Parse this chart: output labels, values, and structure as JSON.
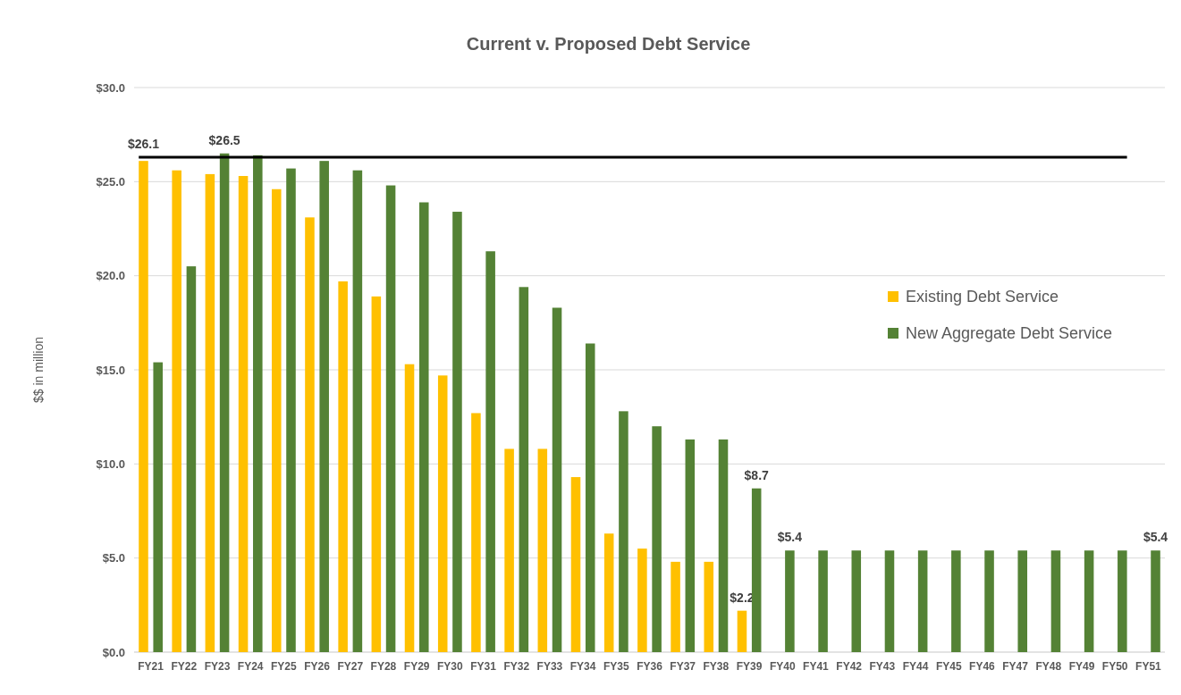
{
  "chart_data": {
    "type": "bar",
    "title": "Current v. Proposed Debt Service",
    "ylabel": "$$ in million",
    "categories": [
      "FY21",
      "FY22",
      "FY23",
      "FY24",
      "FY25",
      "FY26",
      "FY27",
      "FY28",
      "FY29",
      "FY30",
      "FY31",
      "FY32",
      "FY33",
      "FY34",
      "FY35",
      "FY36",
      "FY37",
      "FY38",
      "FY39",
      "FY40",
      "FY41",
      "FY42",
      "FY43",
      "FY44",
      "FY45",
      "FY46",
      "FY47",
      "FY48",
      "FY49",
      "FY50",
      "FY51"
    ],
    "series": [
      {
        "name": "Existing Debt Service",
        "color": "#ffc000",
        "values": [
          26.1,
          25.6,
          25.4,
          25.3,
          24.6,
          23.1,
          19.7,
          18.9,
          15.3,
          14.7,
          12.7,
          10.8,
          10.8,
          9.3,
          6.3,
          5.5,
          4.8,
          4.8,
          2.2,
          null,
          null,
          null,
          null,
          null,
          null,
          null,
          null,
          null,
          null,
          null,
          null
        ],
        "value_labels": [
          "$26.1",
          null,
          null,
          null,
          null,
          null,
          null,
          null,
          null,
          null,
          null,
          null,
          null,
          null,
          null,
          null,
          null,
          null,
          "$2.2",
          null,
          null,
          null,
          null,
          null,
          null,
          null,
          null,
          null,
          null,
          null,
          null
        ]
      },
      {
        "name": "New Aggregate Debt Service",
        "color": "#548235",
        "values": [
          15.4,
          20.5,
          26.5,
          26.4,
          25.7,
          26.1,
          25.6,
          24.8,
          23.9,
          23.4,
          21.3,
          19.4,
          18.3,
          16.4,
          12.8,
          12.0,
          11.3,
          11.3,
          8.7,
          5.4,
          5.4,
          5.4,
          5.4,
          5.4,
          5.4,
          5.4,
          5.4,
          5.4,
          5.4,
          5.4,
          5.4
        ],
        "value_labels": [
          null,
          null,
          "$26.5",
          null,
          null,
          null,
          null,
          null,
          null,
          null,
          null,
          null,
          null,
          null,
          null,
          null,
          null,
          null,
          "$8.7",
          "$5.4",
          null,
          null,
          null,
          null,
          null,
          null,
          null,
          null,
          null,
          null,
          "$5.4"
        ]
      }
    ],
    "ylim": [
      0,
      30
    ],
    "yticks": [
      {
        "value": 0,
        "label": "$0.0"
      },
      {
        "value": 5,
        "label": "$5.0"
      },
      {
        "value": 10,
        "label": "$10.0"
      },
      {
        "value": 15,
        "label": "$15.0"
      },
      {
        "value": 20,
        "label": "$20.0"
      },
      {
        "value": 25,
        "label": "$25.0"
      },
      {
        "value": 30,
        "label": "$30.0"
      }
    ],
    "ref_lines": [
      {
        "axis": "y",
        "value": 26.3,
        "color": "#000000"
      }
    ],
    "grid": "y",
    "legend": "right"
  }
}
